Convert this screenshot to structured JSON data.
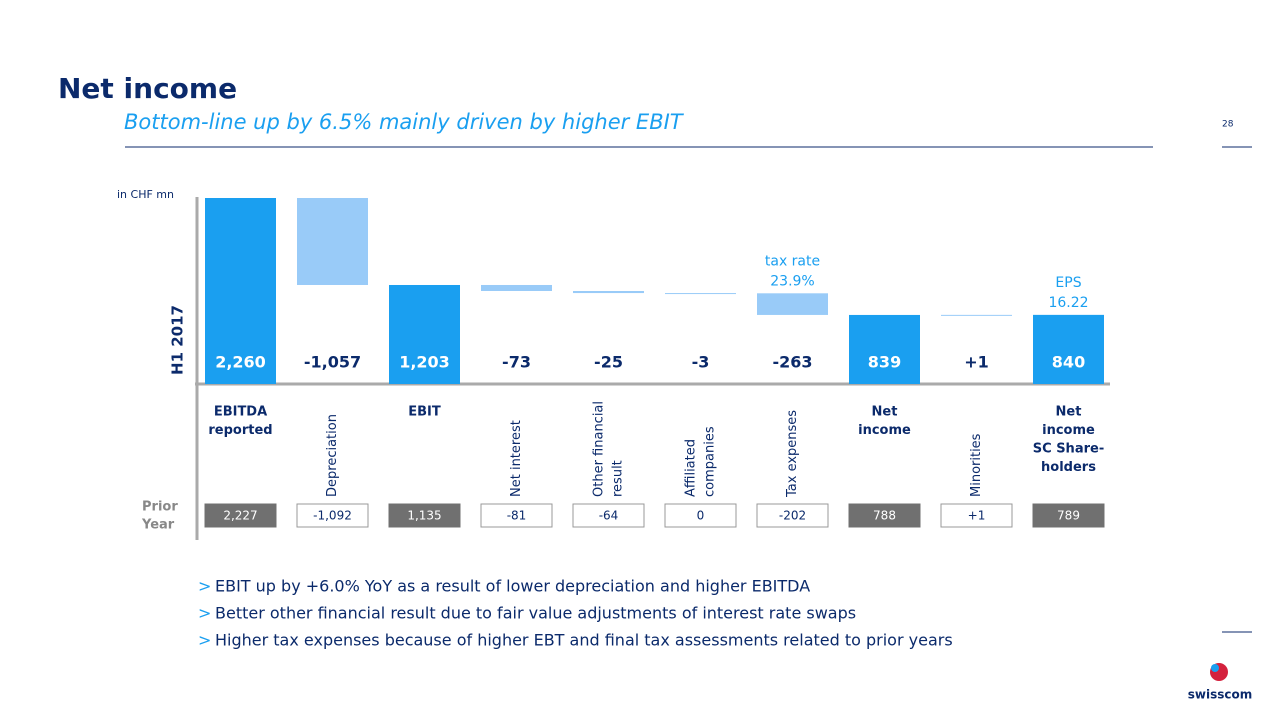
{
  "title": "Net income",
  "subtitle": "Bottom-line up by 6.5% mainly driven by higher EBIT",
  "page_number": "28",
  "logo": "swisscom",
  "bullets": [
    "EBIT up by +6.0% YoY as a result of lower depreciation and higher EBITDA",
    "Better other financial result due to fair value adjustments of interest rate swaps",
    "Higher tax expenses because of higher EBT and final tax assessments related to prior years"
  ],
  "chart_data": {
    "type": "waterfall",
    "unit_label": "in CHF mn",
    "period_label": "H1 2017",
    "categories": [
      [
        "EBITDA",
        "reported"
      ],
      [
        "Depreciation"
      ],
      [
        "EBIT"
      ],
      [
        "Net interest"
      ],
      [
        "Other financial",
        "result"
      ],
      [
        "Affiliated",
        "companies"
      ],
      [
        "Tax expenses"
      ],
      [
        "Net",
        "income"
      ],
      [
        "Minorities"
      ],
      [
        "Net",
        "income",
        "SC Share-",
        "holders"
      ]
    ],
    "values": [
      2260,
      -1057,
      1203,
      -73,
      -25,
      -3,
      -263,
      839,
      1,
      840
    ],
    "value_labels": [
      "2,260",
      "-1,057",
      "1,203",
      "-73",
      "-25",
      "-3",
      "-263",
      "839",
      "+1",
      "840"
    ],
    "bar_kinds": [
      "total",
      "step",
      "total",
      "step",
      "step",
      "step",
      "step",
      "total",
      "step",
      "total"
    ],
    "total_color": "#1a9ff0",
    "step_color": "#99cbf8",
    "annotations": [
      {
        "category": 6,
        "lines": [
          "tax rate",
          "23.9%"
        ]
      },
      {
        "category": 9,
        "lines": [
          "EPS",
          "16.22"
        ]
      }
    ],
    "prior_year": {
      "label": [
        "Prior",
        "Year"
      ],
      "values": [
        2227,
        -1092,
        1135,
        -81,
        -64,
        0,
        -202,
        788,
        1,
        789
      ],
      "value_labels": [
        "2,227",
        "-1,092",
        "1,135",
        "-81",
        "-64",
        "0",
        "-202",
        "788",
        "+1",
        "789"
      ]
    }
  }
}
